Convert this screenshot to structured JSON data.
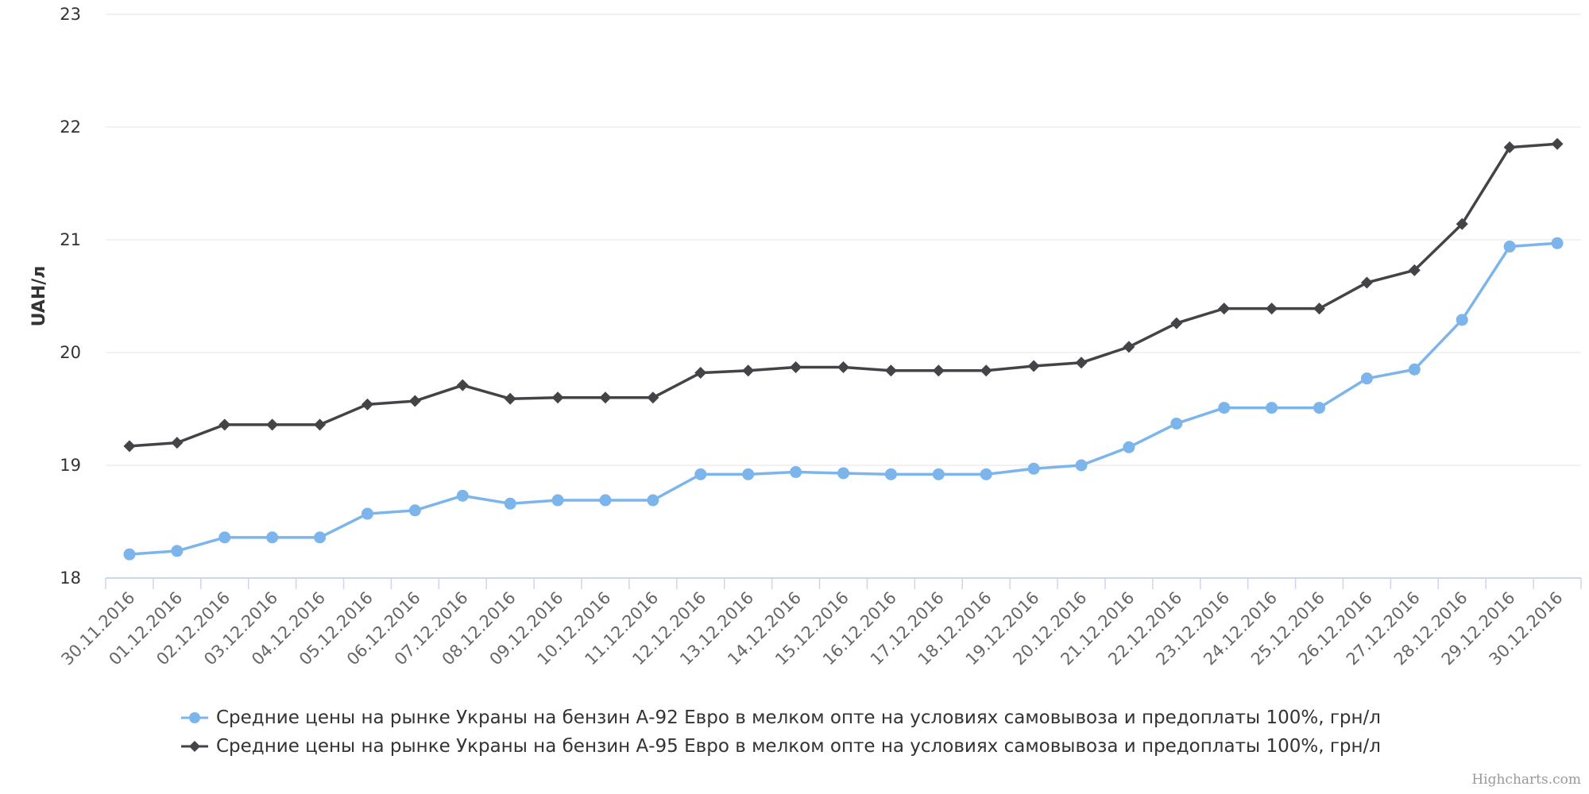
{
  "chart_data": {
    "type": "line",
    "ylabel": "UAH/л",
    "ylim": [
      18,
      23
    ],
    "yticks": [
      18,
      19,
      20,
      21,
      22,
      23
    ],
    "categories": [
      "30.11.2016",
      "01.12.2016",
      "02.12.2016",
      "03.12.2016",
      "04.12.2016",
      "05.12.2016",
      "06.12.2016",
      "07.12.2016",
      "08.12.2016",
      "09.12.2016",
      "10.12.2016",
      "11.12.2016",
      "12.12.2016",
      "13.12.2016",
      "14.12.2016",
      "15.12.2016",
      "16.12.2016",
      "17.12.2016",
      "18.12.2016",
      "19.12.2016",
      "20.12.2016",
      "21.12.2016",
      "22.12.2016",
      "23.12.2016",
      "24.12.2016",
      "25.12.2016",
      "26.12.2016",
      "27.12.2016",
      "28.12.2016",
      "29.12.2016",
      "30.12.2016"
    ],
    "grid": true,
    "legend_position": "bottom",
    "series": [
      {
        "name": "Средние цены на рынке Украны на бензин А-92 Евро в мелком опте на условиях самовывоза и предоплаты 100%, грн/л",
        "color": "#7cb5ec",
        "marker": "circle",
        "values": [
          18.21,
          18.24,
          18.36,
          18.36,
          18.36,
          18.57,
          18.6,
          18.73,
          18.66,
          18.69,
          18.69,
          18.69,
          18.92,
          18.92,
          18.94,
          18.93,
          18.92,
          18.92,
          18.92,
          18.97,
          19.0,
          19.16,
          19.37,
          19.51,
          19.51,
          19.51,
          19.77,
          19.85,
          20.29,
          20.94,
          20.97
        ]
      },
      {
        "name": "Средние цены на рынке Украны на бензин А-95 Евро в мелком опте на условиях самовывоза и предоплаты 100%, грн/л",
        "color": "#434348",
        "marker": "diamond",
        "values": [
          19.17,
          19.2,
          19.36,
          19.36,
          19.36,
          19.54,
          19.57,
          19.71,
          19.59,
          19.6,
          19.6,
          19.6,
          19.82,
          19.84,
          19.87,
          19.87,
          19.84,
          19.84,
          19.84,
          19.88,
          19.91,
          20.05,
          20.26,
          20.39,
          20.39,
          20.39,
          20.62,
          20.73,
          21.14,
          21.82,
          21.85
        ]
      }
    ]
  },
  "credits": "Highcharts.com"
}
